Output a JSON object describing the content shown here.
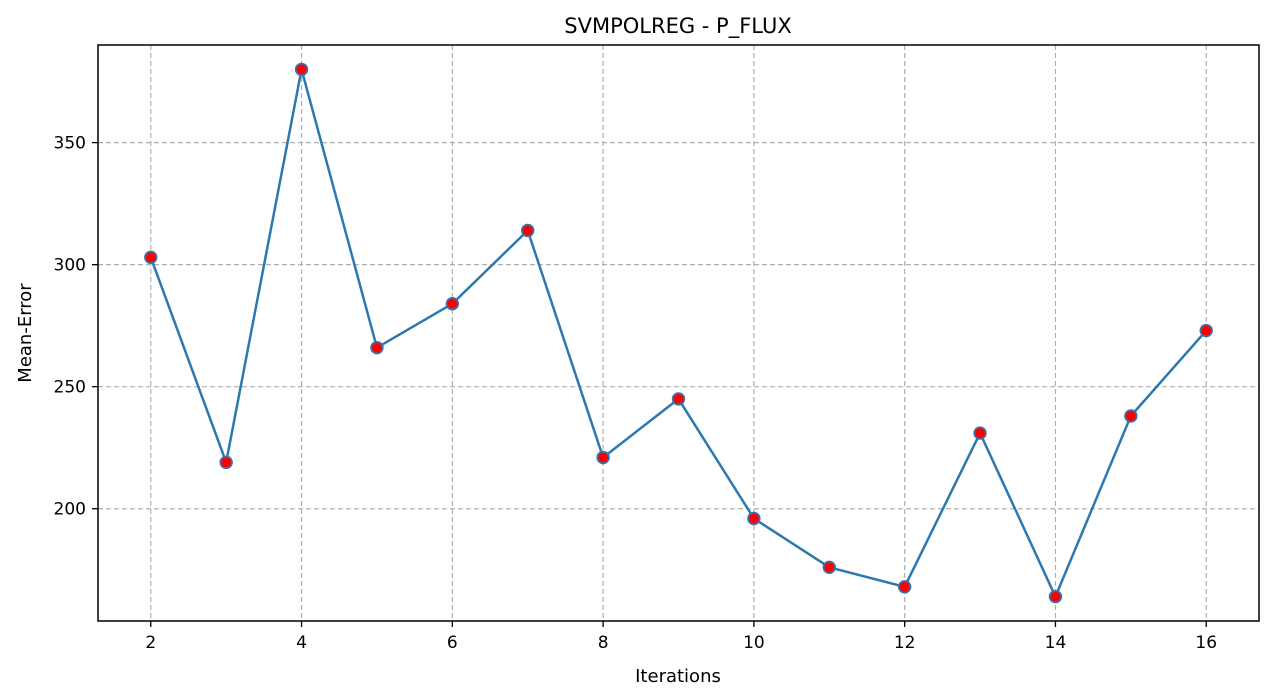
{
  "chart_data": {
    "type": "line",
    "title": "SVMPOLREG - P_FLUX",
    "xlabel": "Iterations",
    "ylabel": "Mean-Error",
    "x": [
      2,
      3,
      4,
      5,
      6,
      7,
      8,
      9,
      10,
      11,
      12,
      13,
      14,
      15,
      16
    ],
    "series": [
      {
        "values": [
          303,
          219,
          380,
          266,
          284,
          314,
          221,
          245,
          196,
          176,
          168,
          231,
          164,
          238,
          273
        ]
      }
    ],
    "xlim": [
      1.3,
      16.7
    ],
    "ylim": [
      154,
      390
    ],
    "xticks": [
      2,
      4,
      6,
      8,
      10,
      12,
      14,
      16
    ],
    "yticks": [
      200,
      250,
      300,
      350
    ],
    "xtick_labels": [
      "2",
      "4",
      "6",
      "8",
      "10",
      "12",
      "14",
      "16"
    ],
    "ytick_labels": [
      "200",
      "250",
      "300",
      "350"
    ],
    "grid": true,
    "grid_style": "dashed",
    "line_color": "#2c79b0",
    "marker_face_color": "#ff0000",
    "marker_edge_color": "#3f6fa8",
    "grid_color": "#b0b0b0",
    "axis_color": "#000000"
  }
}
